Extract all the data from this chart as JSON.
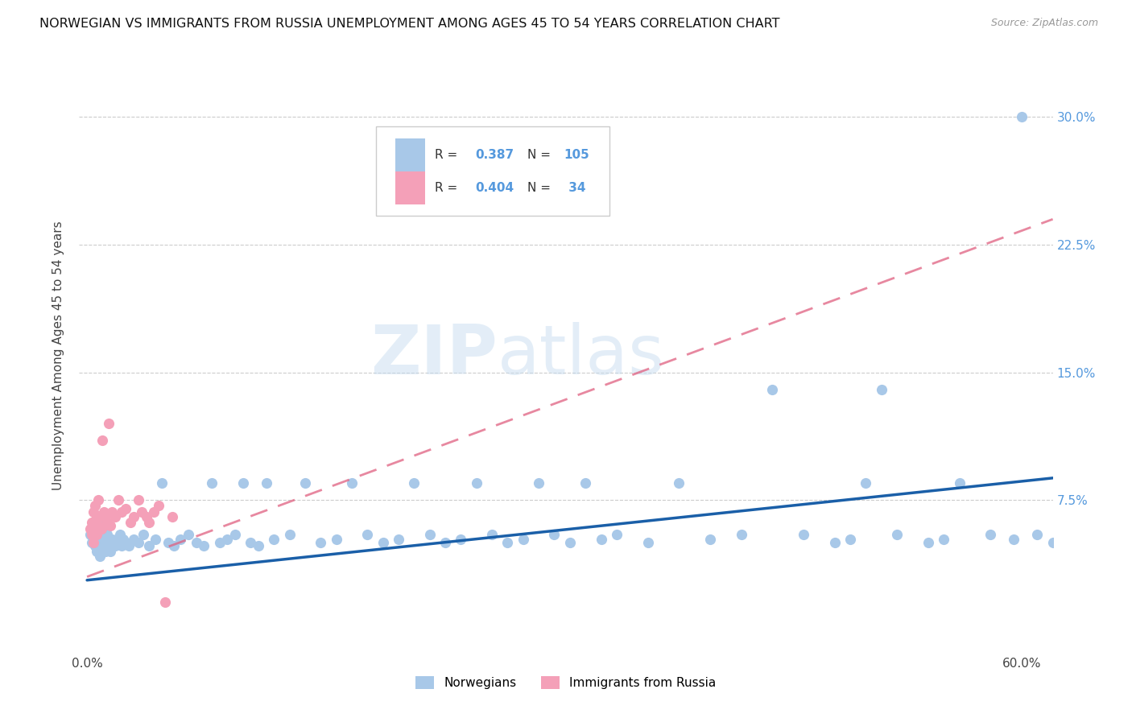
{
  "title": "NORWEGIAN VS IMMIGRANTS FROM RUSSIA UNEMPLOYMENT AMONG AGES 45 TO 54 YEARS CORRELATION CHART",
  "source": "Source: ZipAtlas.com",
  "ylabel": "Unemployment Among Ages 45 to 54 years",
  "xlim": [
    0.0,
    0.62
  ],
  "ylim": [
    -0.015,
    0.335
  ],
  "yticks": [
    0.075,
    0.15,
    0.225,
    0.3
  ],
  "ytick_labels": [
    "7.5%",
    "15.0%",
    "22.5%",
    "30.0%"
  ],
  "xtick_positions": [
    0.0,
    0.6
  ],
  "xtick_labels": [
    "0.0%",
    "60.0%"
  ],
  "norwegian_color": "#a8c8e8",
  "russian_color": "#f4a0b8",
  "norwegian_line_color": "#1a5fa8",
  "russian_line_color": "#e06080",
  "tick_color": "#5599dd",
  "watermark_text": "ZIPatlas",
  "legend_norwegian_R": "0.387",
  "legend_norwegian_N": "105",
  "legend_russian_R": "0.404",
  "legend_russian_N": " 34",
  "norw_x": [
    0.002,
    0.003,
    0.003,
    0.004,
    0.004,
    0.005,
    0.005,
    0.005,
    0.006,
    0.006,
    0.006,
    0.007,
    0.007,
    0.007,
    0.008,
    0.008,
    0.008,
    0.009,
    0.009,
    0.009,
    0.01,
    0.01,
    0.011,
    0.011,
    0.012,
    0.012,
    0.013,
    0.013,
    0.014,
    0.014,
    0.015,
    0.015,
    0.016,
    0.017,
    0.018,
    0.019,
    0.02,
    0.021,
    0.022,
    0.023,
    0.025,
    0.027,
    0.03,
    0.033,
    0.036,
    0.04,
    0.044,
    0.048,
    0.052,
    0.056,
    0.06,
    0.065,
    0.07,
    0.075,
    0.08,
    0.085,
    0.09,
    0.095,
    0.1,
    0.105,
    0.11,
    0.115,
    0.12,
    0.13,
    0.14,
    0.15,
    0.16,
    0.17,
    0.18,
    0.19,
    0.2,
    0.21,
    0.22,
    0.23,
    0.24,
    0.25,
    0.26,
    0.27,
    0.28,
    0.29,
    0.3,
    0.31,
    0.32,
    0.33,
    0.34,
    0.36,
    0.38,
    0.4,
    0.42,
    0.44,
    0.46,
    0.48,
    0.49,
    0.5,
    0.51,
    0.52,
    0.54,
    0.55,
    0.56,
    0.58,
    0.595,
    0.6,
    0.61,
    0.62,
    0.63
  ],
  "norw_y": [
    0.055,
    0.058,
    0.05,
    0.06,
    0.052,
    0.055,
    0.048,
    0.062,
    0.05,
    0.058,
    0.045,
    0.055,
    0.048,
    0.06,
    0.05,
    0.055,
    0.042,
    0.052,
    0.058,
    0.045,
    0.05,
    0.055,
    0.048,
    0.06,
    0.052,
    0.045,
    0.05,
    0.055,
    0.048,
    0.06,
    0.05,
    0.045,
    0.052,
    0.05,
    0.048,
    0.052,
    0.05,
    0.055,
    0.048,
    0.052,
    0.05,
    0.048,
    0.052,
    0.05,
    0.055,
    0.048,
    0.052,
    0.085,
    0.05,
    0.048,
    0.052,
    0.055,
    0.05,
    0.048,
    0.085,
    0.05,
    0.052,
    0.055,
    0.085,
    0.05,
    0.048,
    0.085,
    0.052,
    0.055,
    0.085,
    0.05,
    0.052,
    0.085,
    0.055,
    0.05,
    0.052,
    0.085,
    0.055,
    0.05,
    0.052,
    0.085,
    0.055,
    0.05,
    0.052,
    0.085,
    0.055,
    0.05,
    0.085,
    0.052,
    0.055,
    0.05,
    0.085,
    0.052,
    0.055,
    0.14,
    0.055,
    0.05,
    0.052,
    0.085,
    0.14,
    0.055,
    0.05,
    0.052,
    0.085,
    0.055,
    0.052,
    0.3,
    0.055,
    0.05,
    0.052
  ],
  "russ_x": [
    0.002,
    0.003,
    0.003,
    0.004,
    0.004,
    0.005,
    0.005,
    0.006,
    0.006,
    0.007,
    0.007,
    0.008,
    0.009,
    0.01,
    0.011,
    0.012,
    0.013,
    0.014,
    0.015,
    0.016,
    0.018,
    0.02,
    0.022,
    0.025,
    0.028,
    0.03,
    0.033,
    0.035,
    0.038,
    0.04,
    0.043,
    0.046,
    0.05,
    0.055
  ],
  "russ_y": [
    0.058,
    0.062,
    0.055,
    0.068,
    0.05,
    0.072,
    0.06,
    0.065,
    0.055,
    0.075,
    0.06,
    0.065,
    0.058,
    0.11,
    0.068,
    0.065,
    0.062,
    0.12,
    0.06,
    0.068,
    0.065,
    0.075,
    0.068,
    0.07,
    0.062,
    0.065,
    0.075,
    0.068,
    0.065,
    0.062,
    0.068,
    0.072,
    0.015,
    0.065
  ],
  "norw_line_x": [
    0.0,
    0.62
  ],
  "norw_line_y": [
    0.028,
    0.088
  ],
  "russ_line_x": [
    0.0,
    0.62
  ],
  "russ_line_y": [
    0.03,
    0.24
  ]
}
